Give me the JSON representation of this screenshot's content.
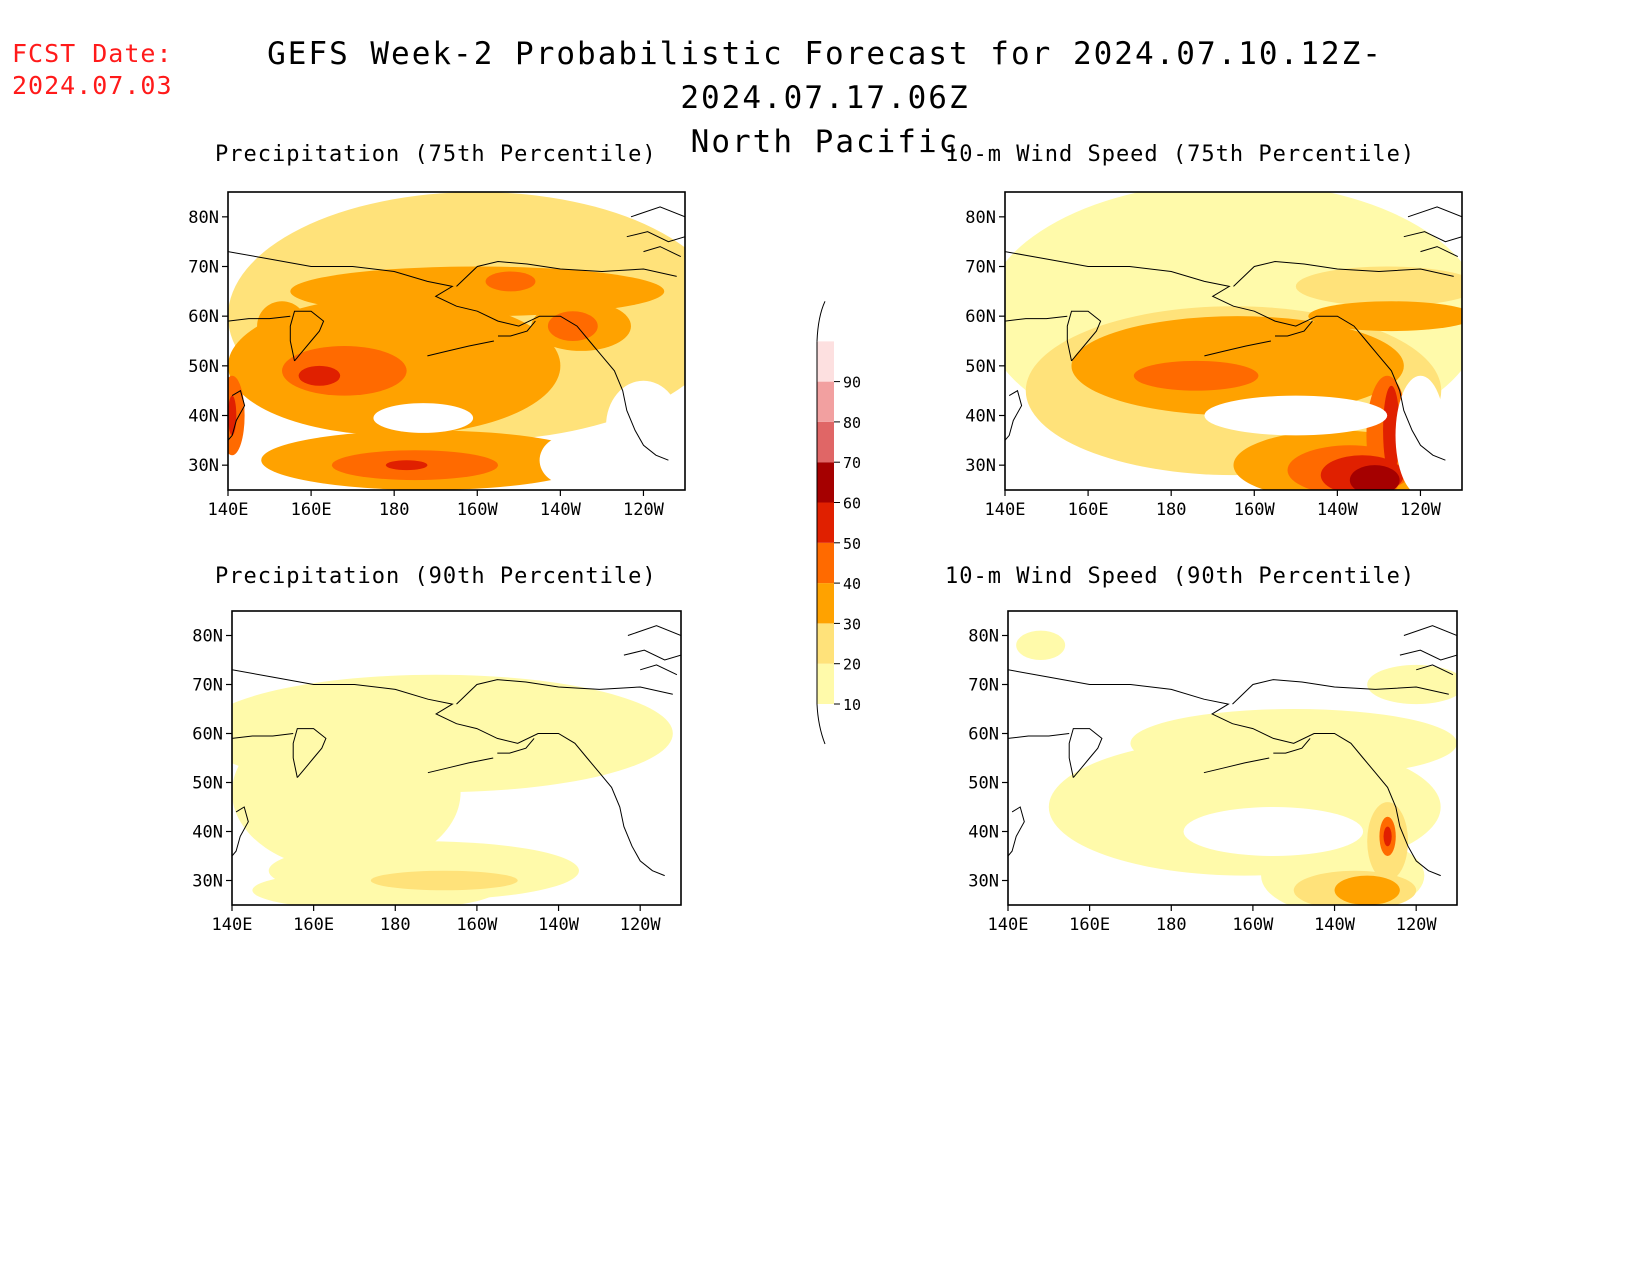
{
  "header": {
    "fcst_label": "FCST Date:",
    "fcst_date": "2024.07.03",
    "title_line1": "GEFS Week-2 Probabilistic Forecast for 2024.07.10.12Z-2024.07.17.06Z",
    "title_line2": "North Pacific"
  },
  "map_extent": {
    "lon_min": 140,
    "lon_max": 250,
    "lat_min": 25,
    "lat_max": 85
  },
  "axis_ticks": {
    "lat": [
      {
        "v": 30,
        "label": "30N"
      },
      {
        "v": 40,
        "label": "40N"
      },
      {
        "v": 50,
        "label": "50N"
      },
      {
        "v": 60,
        "label": "60N"
      },
      {
        "v": 70,
        "label": "70N"
      },
      {
        "v": 80,
        "label": "80N"
      }
    ],
    "lon": [
      {
        "v": 140,
        "label": "140E"
      },
      {
        "v": 160,
        "label": "160E"
      },
      {
        "v": 180,
        "label": "180"
      },
      {
        "v": 200,
        "label": "160W"
      },
      {
        "v": 220,
        "label": "140W"
      },
      {
        "v": 240,
        "label": "120W"
      }
    ]
  },
  "colorbar": {
    "levels": [
      10,
      20,
      30,
      40,
      50,
      60,
      70,
      80,
      90
    ],
    "colors": [
      "#fffaaa",
      "#ffe27a",
      "#ffa200",
      "#ff6a00",
      "#e02000",
      "#a50000",
      "#e06666",
      "#f2a0a0",
      "#fde0e0"
    ]
  },
  "panels": [
    {
      "title": "Precipitation (75th Percentile)",
      "field": "precip75",
      "blobs": [
        {
          "lon": 200,
          "lat": 60,
          "rx": 60,
          "ry": 25,
          "level": 20
        },
        {
          "lon": 180,
          "lat": 50,
          "rx": 40,
          "ry": 14,
          "level": 30
        },
        {
          "lon": 168,
          "lat": 49,
          "rx": 15,
          "ry": 5,
          "level": 40
        },
        {
          "lon": 162,
          "lat": 48,
          "rx": 5,
          "ry": 2,
          "level": 50
        },
        {
          "lon": 188,
          "lat": 31,
          "rx": 40,
          "ry": 6,
          "level": 30
        },
        {
          "lon": 185,
          "lat": 30,
          "rx": 20,
          "ry": 3,
          "level": 40
        },
        {
          "lon": 183,
          "lat": 30,
          "rx": 5,
          "ry": 1,
          "level": 50
        },
        {
          "lon": 200,
          "lat": 65,
          "rx": 45,
          "ry": 5,
          "level": 30
        },
        {
          "lon": 225,
          "lat": 58,
          "rx": 12,
          "ry": 5,
          "level": 30
        },
        {
          "lon": 223,
          "lat": 58,
          "rx": 6,
          "ry": 3,
          "level": 40
        },
        {
          "lon": 208,
          "lat": 67,
          "rx": 6,
          "ry": 2,
          "level": 40
        },
        {
          "lon": 153,
          "lat": 58,
          "rx": 6,
          "ry": 5,
          "level": 30
        },
        {
          "lon": 141,
          "lat": 40,
          "rx": 3,
          "ry": 8,
          "level": 40
        },
        {
          "lon": 141,
          "lat": 40,
          "rx": 1,
          "ry": 4,
          "level": 50
        }
      ],
      "holes": [
        {
          "lon": 187,
          "lat": 39.5,
          "rx": 12,
          "ry": 3
        },
        {
          "lon": 222,
          "lat": 31,
          "rx": 7,
          "ry": 5
        },
        {
          "lon": 240,
          "lat": 38,
          "rx": 9,
          "ry": 9
        }
      ]
    },
    {
      "title": "10-m Wind Speed (75th Percentile)",
      "field": "wind75",
      "blobs": [
        {
          "lon": 195,
          "lat": 60,
          "rx": 60,
          "ry": 27,
          "level": 10
        },
        {
          "lon": 195,
          "lat": 45,
          "rx": 50,
          "ry": 17,
          "level": 20
        },
        {
          "lon": 196,
          "lat": 50,
          "rx": 40,
          "ry": 10,
          "level": 30
        },
        {
          "lon": 186,
          "lat": 48,
          "rx": 15,
          "ry": 3,
          "level": 40
        },
        {
          "lon": 220,
          "lat": 30,
          "rx": 25,
          "ry": 7,
          "level": 30
        },
        {
          "lon": 223,
          "lat": 29,
          "rx": 15,
          "ry": 5,
          "level": 40
        },
        {
          "lon": 226,
          "lat": 28,
          "rx": 10,
          "ry": 4,
          "level": 50
        },
        {
          "lon": 229,
          "lat": 27,
          "rx": 6,
          "ry": 3,
          "level": 60
        },
        {
          "lon": 232,
          "lat": 36,
          "rx": 5,
          "ry": 12,
          "level": 40
        },
        {
          "lon": 233,
          "lat": 37,
          "rx": 2,
          "ry": 9,
          "level": 50
        },
        {
          "lon": 232,
          "lat": 66,
          "rx": 22,
          "ry": 4,
          "level": 20
        },
        {
          "lon": 233,
          "lat": 60,
          "rx": 20,
          "ry": 3,
          "level": 30
        },
        {
          "lon": 186,
          "lat": 34,
          "rx": 16,
          "ry": 4,
          "level": 20
        }
      ],
      "holes": [
        {
          "lon": 210,
          "lat": 40,
          "rx": 22,
          "ry": 4
        },
        {
          "lon": 240,
          "lat": 36,
          "rx": 6,
          "ry": 12
        }
      ]
    },
    {
      "title": "Precipitation (90th Percentile)",
      "field": "precip90",
      "blobs": [
        {
          "lon": 168,
          "lat": 48,
          "rx": 28,
          "ry": 16,
          "level": 10
        },
        {
          "lon": 190,
          "lat": 60,
          "rx": 58,
          "ry": 12,
          "level": 10
        },
        {
          "lon": 187,
          "lat": 32,
          "rx": 38,
          "ry": 6,
          "level": 10
        },
        {
          "lon": 175,
          "lat": 28,
          "rx": 30,
          "ry": 4,
          "level": 10
        },
        {
          "lon": 192,
          "lat": 30,
          "rx": 18,
          "ry": 2,
          "level": 20
        },
        {
          "lon": 224,
          "lat": 58,
          "rx": 8,
          "ry": 5,
          "level": 10
        }
      ],
      "holes": []
    },
    {
      "title": "10-m Wind Speed (90th Percentile)",
      "field": "wind90",
      "blobs": [
        {
          "lon": 198,
          "lat": 45,
          "rx": 48,
          "ry": 14,
          "level": 10
        },
        {
          "lon": 210,
          "lat": 58,
          "rx": 40,
          "ry": 7,
          "level": 10
        },
        {
          "lon": 222,
          "lat": 31,
          "rx": 20,
          "ry": 8,
          "level": 10
        },
        {
          "lon": 225,
          "lat": 28,
          "rx": 15,
          "ry": 4,
          "level": 20
        },
        {
          "lon": 228,
          "lat": 28,
          "rx": 8,
          "ry": 3,
          "level": 30
        },
        {
          "lon": 233,
          "lat": 38,
          "rx": 5,
          "ry": 8,
          "level": 20
        },
        {
          "lon": 233,
          "lat": 39,
          "rx": 2,
          "ry": 4,
          "level": 40
        },
        {
          "lon": 233,
          "lat": 39,
          "rx": 1,
          "ry": 2,
          "level": 50
        },
        {
          "lon": 240,
          "lat": 70,
          "rx": 12,
          "ry": 4,
          "level": 10
        },
        {
          "lon": 148,
          "lat": 78,
          "rx": 6,
          "ry": 3,
          "level": 10
        }
      ],
      "holes": [
        {
          "lon": 205,
          "lat": 40,
          "rx": 22,
          "ry": 5
        }
      ]
    }
  ]
}
